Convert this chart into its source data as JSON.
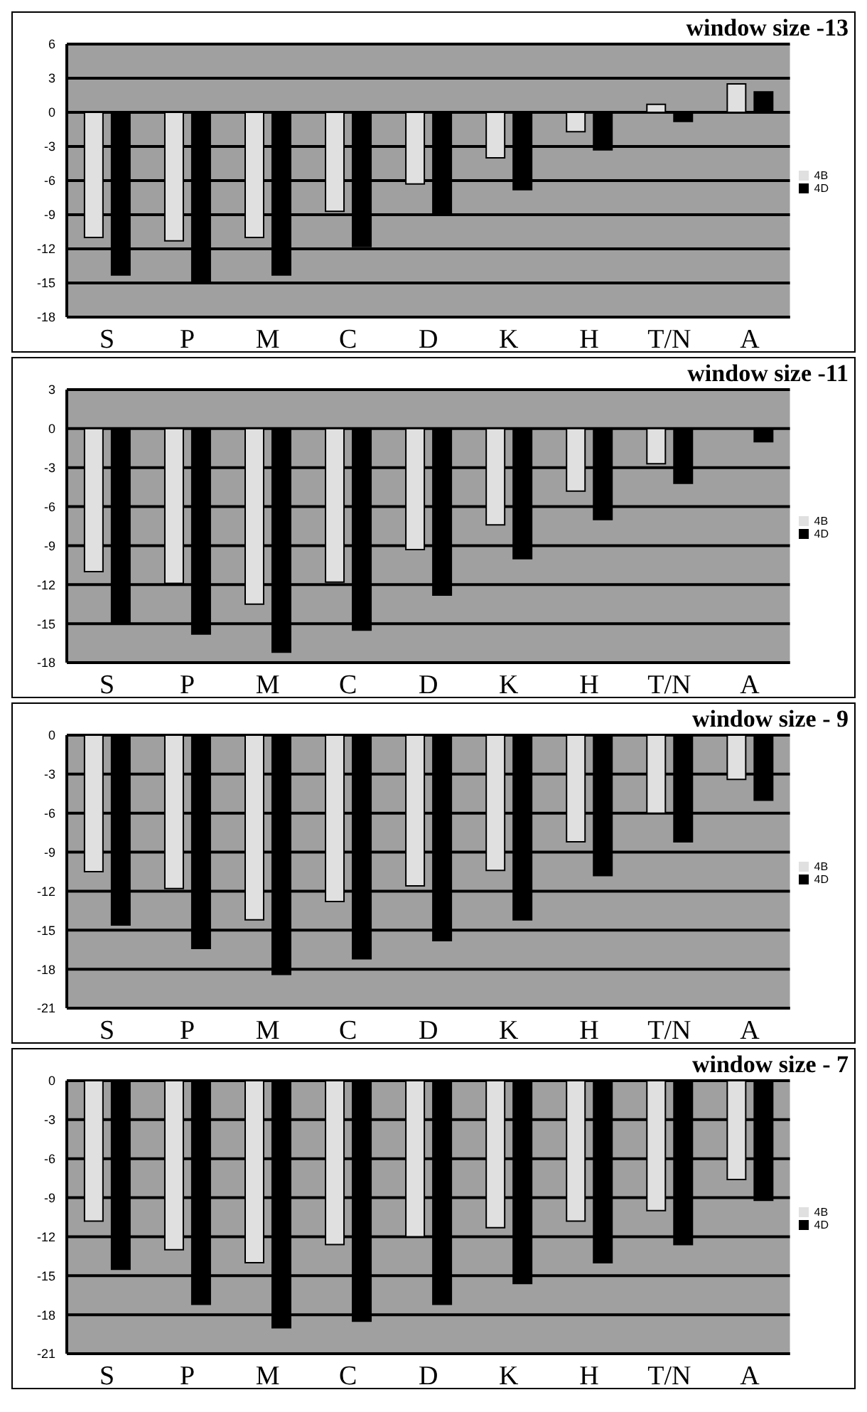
{
  "chart_data": [
    {
      "type": "bar",
      "title": "window size -13",
      "categories": [
        "S",
        "P",
        "M",
        "C",
        "D",
        "K",
        "H",
        "T/N",
        "A"
      ],
      "series": [
        {
          "name": "4B",
          "color": "#e0e0e0",
          "values": [
            -11,
            -11.3,
            -11,
            -8.7,
            -6.3,
            -4,
            -1.7,
            0.7,
            2.5
          ]
        },
        {
          "name": "4D",
          "color": "#000000",
          "values": [
            -14.3,
            -15,
            -14.3,
            -11.8,
            -9,
            -6.8,
            -3.3,
            -0.8,
            1.8
          ]
        }
      ],
      "ylim": [
        -18,
        6
      ],
      "yticks": [
        -18,
        -15,
        -12,
        -9,
        -6,
        -3,
        0,
        3,
        6
      ],
      "grid": "y",
      "legend": "right"
    },
    {
      "type": "bar",
      "title": "window size -11",
      "categories": [
        "S",
        "P",
        "M",
        "C",
        "D",
        "K",
        "H",
        "T/N",
        "A"
      ],
      "series": [
        {
          "name": "4B",
          "color": "#e0e0e0",
          "values": [
            -11,
            -11.9,
            -13.5,
            -11.8,
            -9.3,
            -7.4,
            -4.8,
            -2.7,
            0
          ]
        },
        {
          "name": "4D",
          "color": "#000000",
          "values": [
            -15,
            -15.8,
            -17.2,
            -15.5,
            -12.8,
            -10,
            -7,
            -4.2,
            -1
          ]
        }
      ],
      "ylim": [
        -18,
        3
      ],
      "yticks": [
        -18,
        -15,
        -12,
        -9,
        -6,
        -3,
        0,
        3
      ],
      "grid": "y",
      "legend": "right"
    },
    {
      "type": "bar",
      "title": "window size - 9",
      "categories": [
        "S",
        "P",
        "M",
        "C",
        "D",
        "K",
        "H",
        "T/N",
        "A"
      ],
      "series": [
        {
          "name": "4B",
          "color": "#e0e0e0",
          "values": [
            -10.5,
            -11.8,
            -14.2,
            -12.8,
            -11.6,
            -10.4,
            -8.2,
            -6,
            -3.4
          ]
        },
        {
          "name": "4D",
          "color": "#000000",
          "values": [
            -14.6,
            -16.4,
            -18.4,
            -17.2,
            -15.8,
            -14.2,
            -10.8,
            -8.2,
            -5
          ]
        }
      ],
      "ylim": [
        -21,
        0
      ],
      "yticks": [
        -21,
        -18,
        -15,
        -12,
        -9,
        -6,
        -3,
        0
      ],
      "grid": "y",
      "legend": "right"
    },
    {
      "type": "bar",
      "title": "window size - 7",
      "categories": [
        "S",
        "P",
        "M",
        "C",
        "D",
        "K",
        "H",
        "T/N",
        "A"
      ],
      "series": [
        {
          "name": "4B",
          "color": "#e0e0e0",
          "values": [
            -10.8,
            -13,
            -14,
            -12.6,
            -12,
            -11.3,
            -10.8,
            -10,
            -7.6
          ]
        },
        {
          "name": "4D",
          "color": "#000000",
          "values": [
            -14.5,
            -17.2,
            -19,
            -18.5,
            -17.2,
            -15.6,
            -14,
            -12.6,
            -9.2
          ]
        }
      ],
      "ylim": [
        -21,
        0
      ],
      "yticks": [
        -21,
        -18,
        -15,
        -12,
        -9,
        -6,
        -3,
        0
      ],
      "grid": "y",
      "legend": "right"
    }
  ]
}
